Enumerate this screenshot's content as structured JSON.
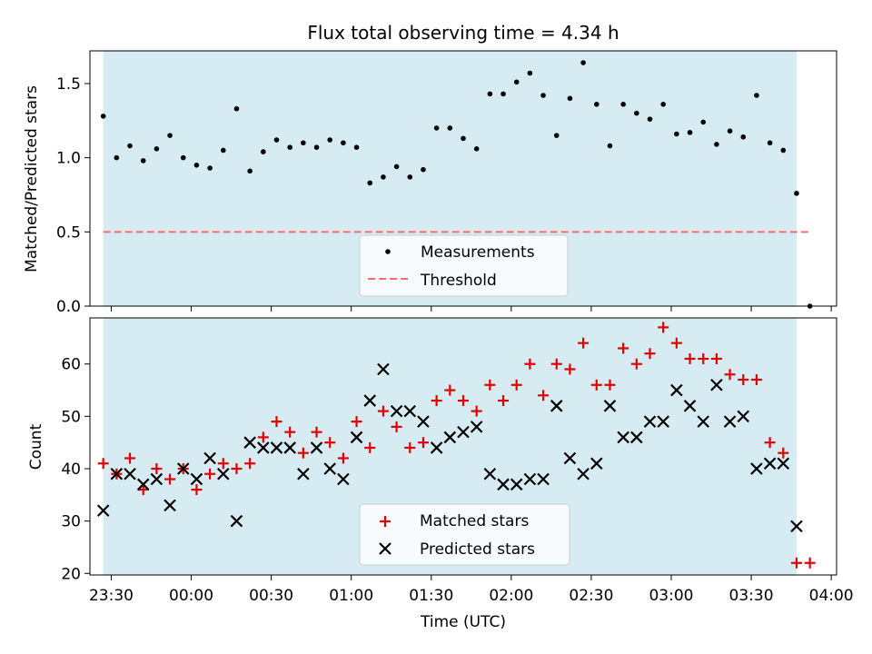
{
  "chart_data": [
    {
      "type": "scatter",
      "title": "Flux total observing time = 4.34 h",
      "xlabel": "",
      "ylabel": "Matched/Predicted stars",
      "ylim": [
        0,
        1.72
      ],
      "xlim_minutes_from_2330": [
        -8,
        272
      ],
      "yticks": [
        0.0,
        0.5,
        1.0,
        1.5
      ],
      "ytick_labels": [
        "0.0",
        "0.5",
        "1.0",
        "1.5"
      ],
      "xticks_minutes_from_2330": [
        0,
        30,
        60,
        90,
        120,
        150,
        180,
        210,
        240,
        270
      ],
      "shaded_span_minutes_from_2330": [
        -3,
        257
      ],
      "shade_color": "#add8e6",
      "threshold": 0.5,
      "legend_position": "lower center",
      "legend": [
        "Measurements",
        "Threshold"
      ],
      "series": [
        {
          "name": "Measurements",
          "marker": "dot",
          "color": "#000000",
          "x": [
            -3,
            2,
            7,
            12,
            17,
            22,
            27,
            32,
            37,
            42,
            47,
            52,
            57,
            62,
            67,
            72,
            77,
            82,
            87,
            92,
            97,
            102,
            107,
            112,
            117,
            122,
            127,
            132,
            137,
            142,
            147,
            152,
            157,
            162,
            167,
            172,
            177,
            182,
            187,
            192,
            197,
            202,
            207,
            212,
            217,
            222,
            227,
            232,
            237,
            242,
            247,
            252,
            257,
            262
          ],
          "y": [
            1.28,
            1.0,
            1.08,
            0.98,
            1.06,
            1.15,
            1.0,
            0.95,
            0.93,
            1.05,
            1.33,
            0.91,
            1.04,
            1.12,
            1.07,
            1.1,
            1.07,
            1.12,
            1.1,
            1.07,
            0.83,
            0.87,
            0.94,
            0.87,
            0.92,
            1.2,
            1.2,
            1.13,
            1.06,
            1.43,
            1.43,
            1.51,
            1.57,
            1.42,
            1.15,
            1.4,
            1.64,
            1.36,
            1.08,
            1.36,
            1.3,
            1.26,
            1.36,
            1.16,
            1.17,
            1.24,
            1.09,
            1.18,
            1.14,
            1.42,
            1.1,
            1.05,
            0.76,
            0.0
          ]
        },
        {
          "name": "Threshold",
          "style": "dashed",
          "color": "#ff6b6b",
          "x": [
            -3,
            262
          ],
          "y": [
            0.5,
            0.5
          ]
        }
      ]
    },
    {
      "type": "scatter",
      "xlabel": "Time (UTC)",
      "ylabel": "Count",
      "ylim": [
        19.7,
        68.8
      ],
      "xlim_minutes_from_2330": [
        -8,
        272
      ],
      "yticks": [
        20,
        30,
        40,
        50,
        60
      ],
      "ytick_labels": [
        "20",
        "30",
        "40",
        "50",
        "60"
      ],
      "xticks_minutes_from_2330": [
        0,
        30,
        60,
        90,
        120,
        150,
        180,
        210,
        240,
        270
      ],
      "xtick_labels": [
        "23:30",
        "00:00",
        "00:30",
        "01:00",
        "01:30",
        "02:00",
        "02:30",
        "03:00",
        "03:30",
        "04:00"
      ],
      "shaded_span_minutes_from_2330": [
        -3,
        257
      ],
      "shade_color": "#add8e6",
      "legend_position": "lower center",
      "legend": [
        "Matched stars",
        "Predicted stars"
      ],
      "x": [
        -3,
        2,
        7,
        12,
        17,
        22,
        27,
        32,
        37,
        42,
        47,
        52,
        57,
        62,
        67,
        72,
        77,
        82,
        87,
        92,
        97,
        102,
        107,
        112,
        117,
        122,
        127,
        132,
        137,
        142,
        147,
        152,
        157,
        162,
        167,
        172,
        177,
        182,
        187,
        192,
        197,
        202,
        207,
        212,
        217,
        222,
        227,
        232,
        237,
        242,
        247,
        252,
        257,
        262
      ],
      "series": [
        {
          "name": "Matched stars",
          "marker": "plus",
          "color": "#e00000",
          "values": [
            41,
            39,
            42,
            36,
            40,
            38,
            40,
            36,
            39,
            41,
            40,
            41,
            46,
            49,
            47,
            43,
            47,
            45,
            42,
            49,
            44,
            51,
            48,
            44,
            45,
            53,
            55,
            53,
            51,
            56,
            53,
            56,
            60,
            54,
            60,
            59,
            64,
            56,
            56,
            63,
            60,
            62,
            67,
            64,
            61,
            61,
            61,
            58,
            57,
            57,
            45,
            43,
            22,
            22
          ]
        },
        {
          "name": "Predicted stars",
          "marker": "x",
          "color": "#000000",
          "values": [
            32,
            39,
            39,
            37,
            38,
            33,
            40,
            38,
            42,
            39,
            30,
            45,
            44,
            44,
            44,
            39,
            44,
            40,
            38,
            46,
            53,
            59,
            51,
            51,
            49,
            44,
            46,
            47,
            48,
            39,
            37,
            37,
            38,
            38,
            52,
            42,
            39,
            41,
            52,
            46,
            46,
            49,
            49,
            55,
            52,
            49,
            56,
            49,
            50,
            40,
            41,
            41,
            29,
            null
          ]
        }
      ]
    }
  ]
}
